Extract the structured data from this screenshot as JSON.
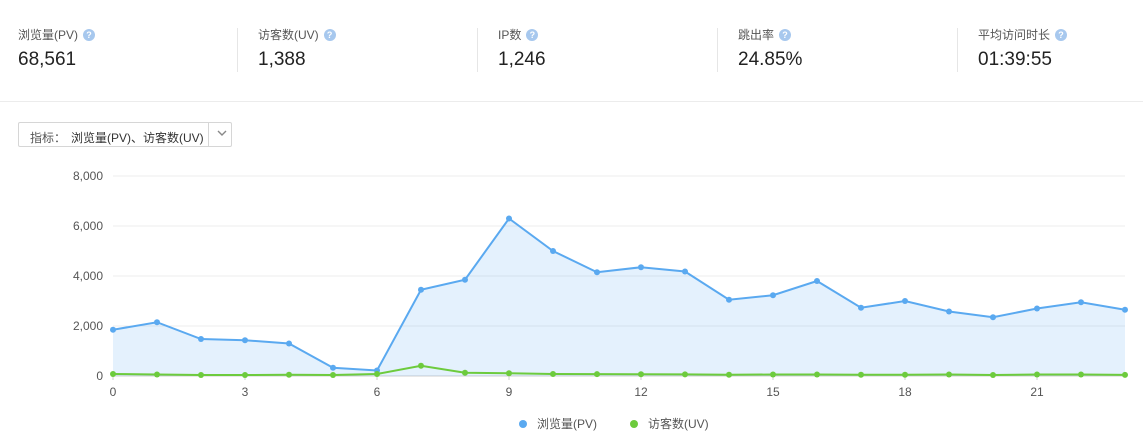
{
  "stats": [
    {
      "label": "浏览量(PV)",
      "value": "68,561"
    },
    {
      "label": "访客数(UV)",
      "value": "1,388"
    },
    {
      "label": "IP数",
      "value": "1,246"
    },
    {
      "label": "跳出率",
      "value": "24.85%"
    },
    {
      "label": "平均访问时长",
      "value": "01:39:55"
    }
  ],
  "help_glyph": "?",
  "metric_selector": {
    "prefix": "指标：",
    "value": "浏览量(PV)、访客数(UV)"
  },
  "chart_data": {
    "type": "line",
    "x": [
      0,
      1,
      2,
      3,
      4,
      5,
      6,
      7,
      8,
      9,
      10,
      11,
      12,
      13,
      14,
      15,
      16,
      17,
      18,
      19,
      20,
      21,
      22,
      23
    ],
    "xticks": [
      "0",
      "3",
      "6",
      "9",
      "12",
      "15",
      "18",
      "21"
    ],
    "yticks": [
      "0",
      "2,000",
      "4,000",
      "6,000",
      "8,000"
    ],
    "ylim": [
      0,
      8000
    ],
    "grid": true,
    "legend_position": "bottom-center",
    "series": [
      {
        "name": "浏览量(PV)",
        "color": "#5aa9f0",
        "area": true,
        "values": [
          1850,
          2150,
          1480,
          1430,
          1300,
          330,
          220,
          3450,
          3850,
          6300,
          5000,
          4150,
          4350,
          4180,
          3050,
          3230,
          3800,
          2730,
          3000,
          2580,
          2350,
          2700,
          2950,
          2650
        ]
      },
      {
        "name": "访客数(UV)",
        "color": "#6dcb3d",
        "area": false,
        "values": [
          80,
          60,
          40,
          40,
          50,
          40,
          80,
          410,
          130,
          110,
          80,
          75,
          70,
          65,
          50,
          60,
          60,
          50,
          50,
          60,
          40,
          60,
          60,
          45
        ]
      }
    ]
  }
}
